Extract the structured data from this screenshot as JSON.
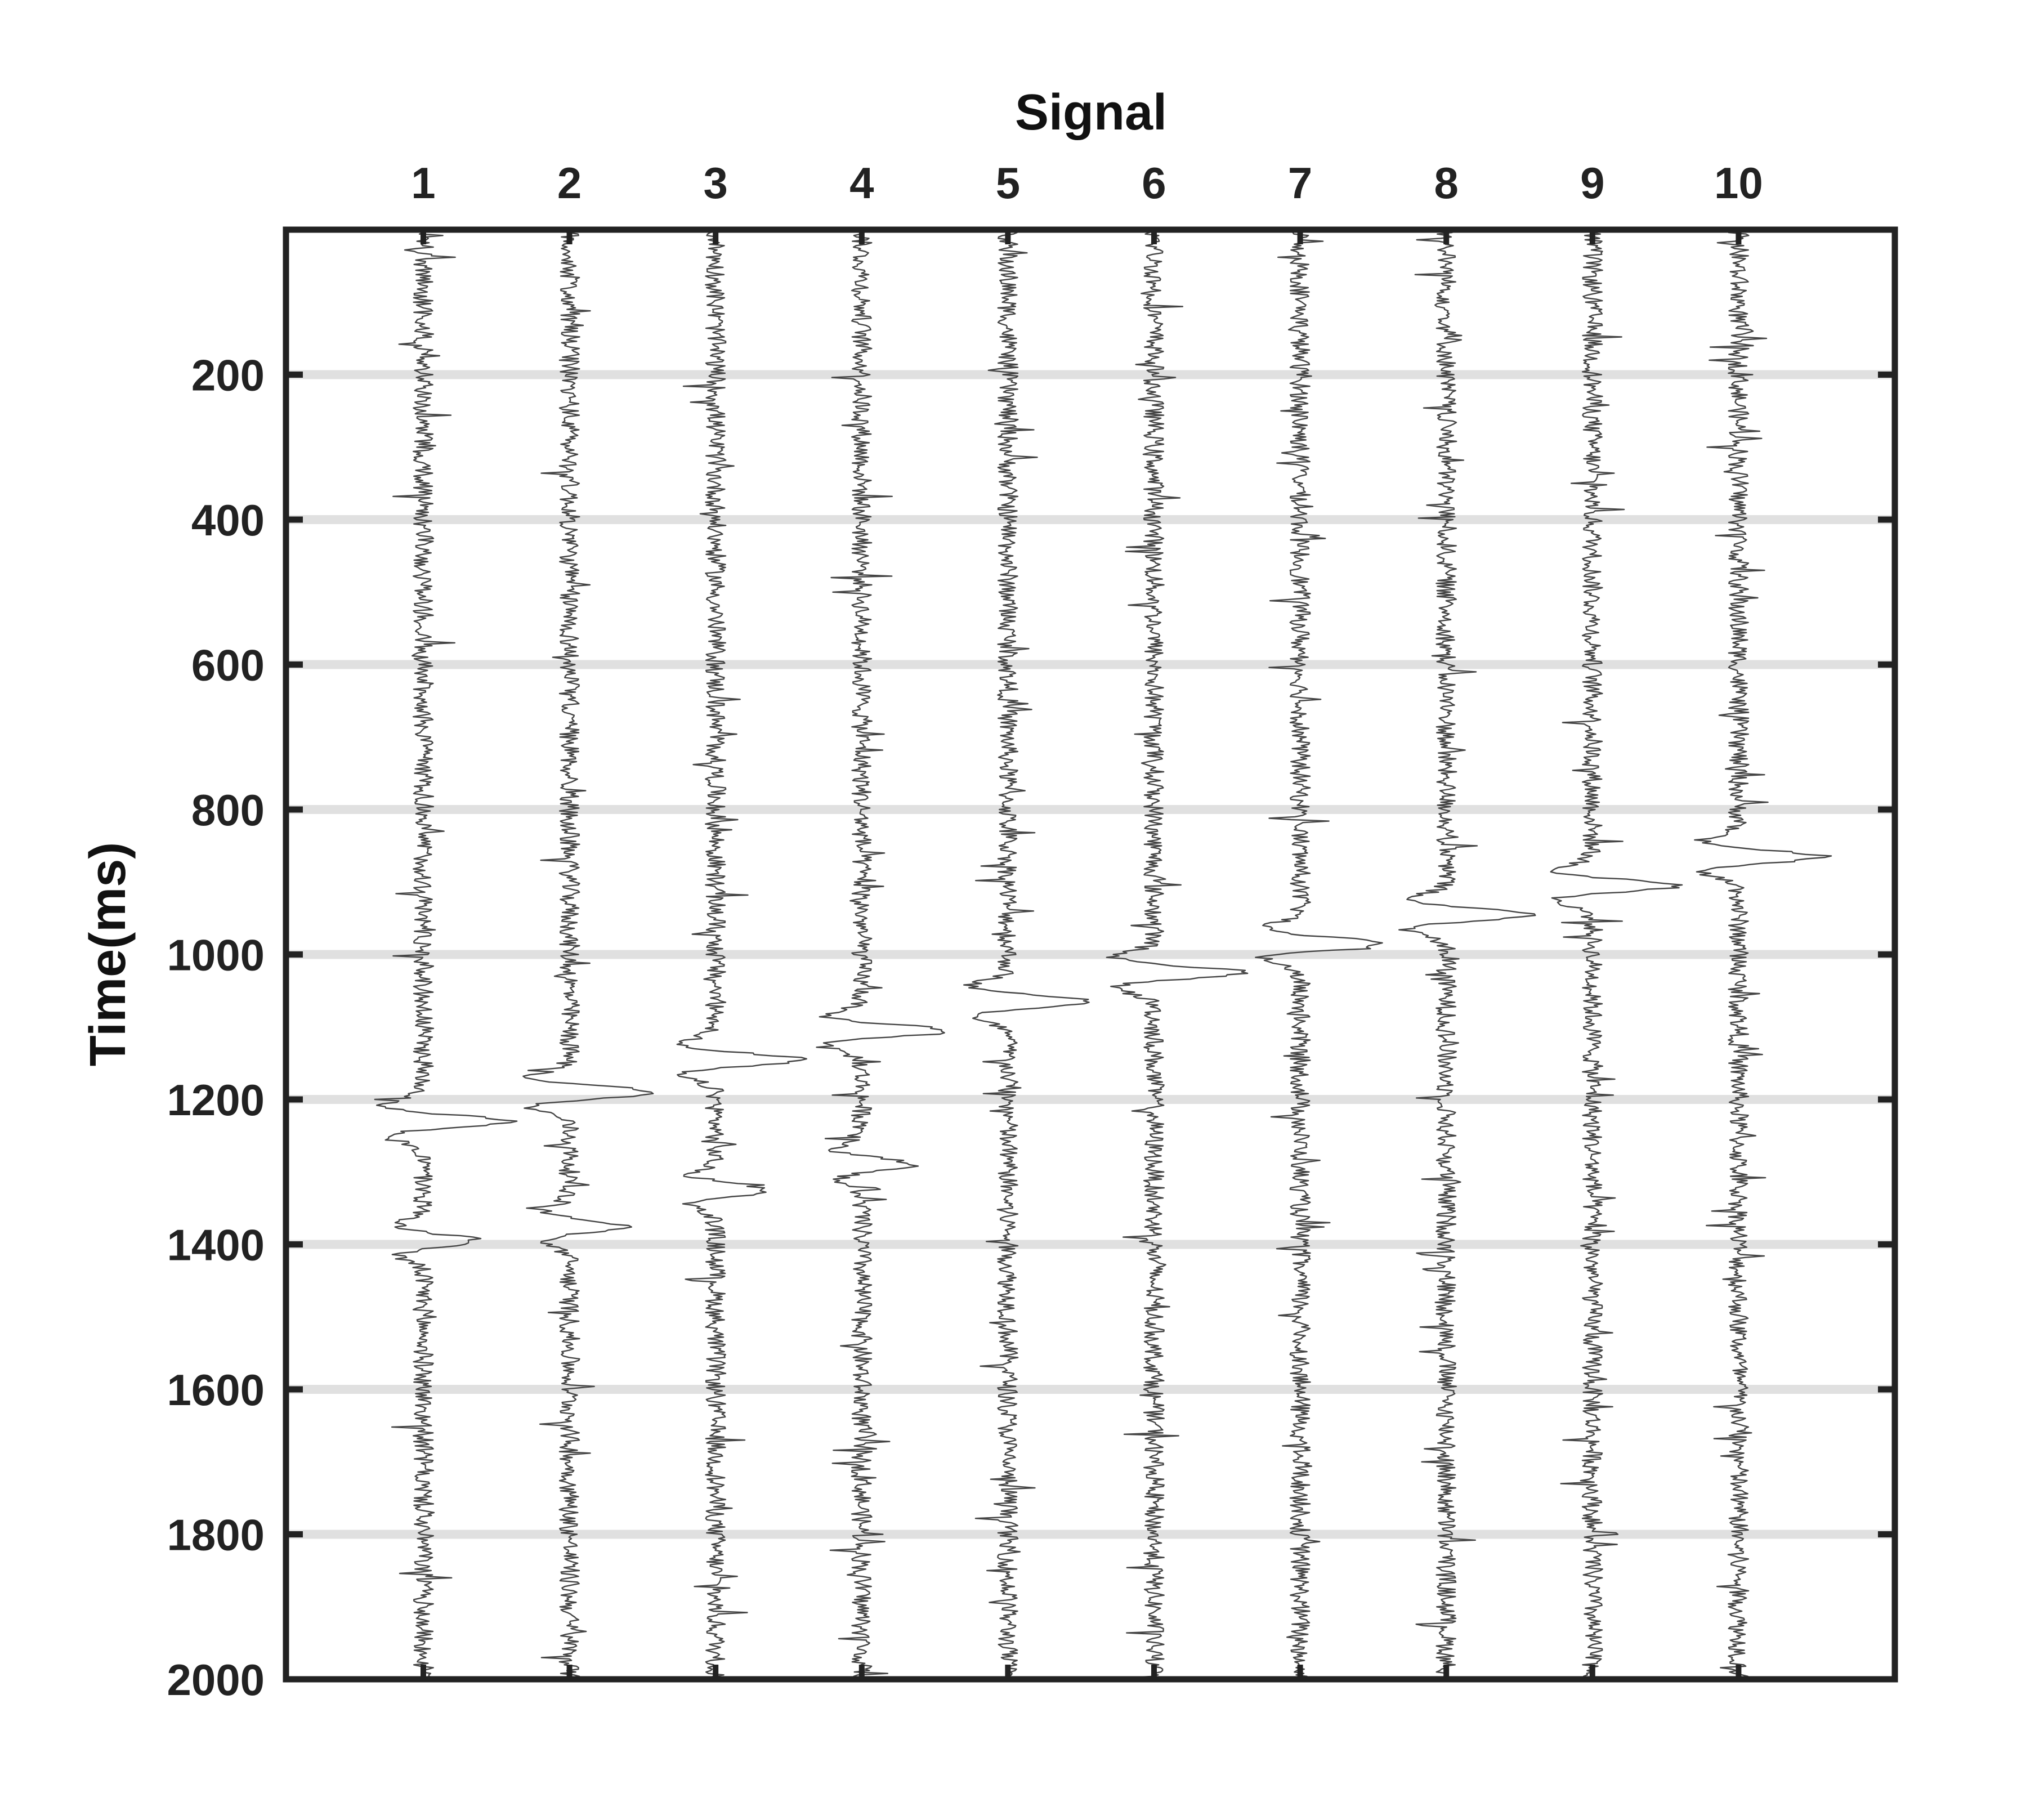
{
  "chart_data": {
    "type": "line",
    "title": "",
    "xlabel": "Signal",
    "ylabel": "Time(ms)",
    "x_axis_position": "top",
    "y_axis_reversed": true,
    "ylim": [
      0,
      2000
    ],
    "grid": "horizontal",
    "traces": [
      "1",
      "2",
      "3",
      "4",
      "5",
      "6",
      "7",
      "8",
      "9",
      "10"
    ],
    "y_ticks": [
      200,
      400,
      600,
      800,
      1000,
      1200,
      1400,
      1600,
      1800,
      2000
    ],
    "arrivals_ms": [
      [
        1230,
        1395
      ],
      [
        1190,
        1375
      ],
      [
        1145,
        1325
      ],
      [
        1105,
        1290
      ],
      [
        1065
      ],
      [
        1025
      ],
      [
        985
      ],
      [
        945
      ],
      [
        905
      ],
      [
        865
      ]
    ],
    "colors": {
      "trace": "#444444",
      "grid": "#e0e0e0",
      "axes": "#222222"
    }
  }
}
